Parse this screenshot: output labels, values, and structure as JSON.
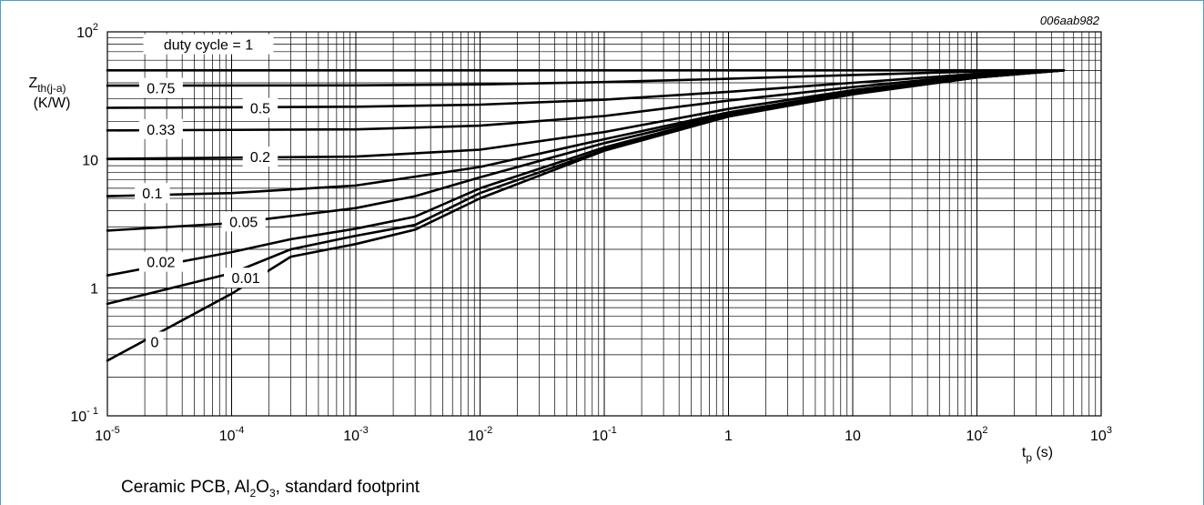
{
  "figure_id": "006aab982",
  "caption": {
    "prefix": "Ceramic PCB, Al",
    "sub1": "2",
    "mid": "O",
    "sub2": "3",
    "suffix": ", standard footprint"
  },
  "chart_data": {
    "type": "line",
    "x_scale": "log",
    "y_scale": "log",
    "xlim": [
      1e-05,
      1000
    ],
    "ylim": [
      0.1,
      100
    ],
    "grid": true,
    "x_ticks": [
      {
        "value": 1e-05,
        "base": "10",
        "exp": "-5"
      },
      {
        "value": 0.0001,
        "base": "10",
        "exp": "-4"
      },
      {
        "value": 0.001,
        "base": "10",
        "exp": "-3"
      },
      {
        "value": 0.01,
        "base": "10",
        "exp": "-2"
      },
      {
        "value": 0.1,
        "base": "10",
        "exp": "-1"
      },
      {
        "value": 1,
        "base": "1",
        "exp": ""
      },
      {
        "value": 10,
        "base": "10",
        "exp": ""
      },
      {
        "value": 100,
        "base": "10",
        "exp": "2"
      },
      {
        "value": 1000,
        "base": "10",
        "exp": "3"
      }
    ],
    "y_ticks": [
      {
        "value": 0.1,
        "base": "10",
        "exp": "- 1"
      },
      {
        "value": 1,
        "base": "1",
        "exp": ""
      },
      {
        "value": 10,
        "base": "10",
        "exp": ""
      },
      {
        "value": 100,
        "base": "10",
        "exp": "2"
      }
    ],
    "xlabel": {
      "main": "t",
      "sub": "p",
      "unit": " (s)"
    },
    "ylabel": {
      "main": "Z",
      "sub": "th(j-a)",
      "unit": "(K/W)"
    },
    "series": [
      {
        "name": "duty cycle = 1",
        "x": [
          1e-05,
          500
        ],
        "y": [
          50,
          50
        ]
      },
      {
        "name": "0.75",
        "x": [
          1e-05,
          0.001,
          0.01,
          0.1,
          1,
          10,
          100,
          500
        ],
        "y": [
          38,
          38.2,
          38.8,
          40.5,
          43,
          46,
          49,
          50
        ]
      },
      {
        "name": "0.5",
        "x": [
          1e-05,
          0.001,
          0.01,
          0.1,
          1,
          10,
          100,
          500
        ],
        "y": [
          25.5,
          26,
          27,
          29.5,
          34,
          40,
          47,
          50
        ]
      },
      {
        "name": "0.33",
        "x": [
          1e-05,
          0.001,
          0.01,
          0.1,
          1,
          10,
          100,
          500
        ],
        "y": [
          17,
          17.3,
          18.5,
          22,
          29,
          37,
          46,
          50
        ]
      },
      {
        "name": "0.2",
        "x": [
          1e-05,
          0.001,
          0.01,
          0.1,
          1,
          10,
          100,
          500
        ],
        "y": [
          10.2,
          10.6,
          12,
          16.5,
          25,
          35,
          45,
          50
        ]
      },
      {
        "name": "0.1",
        "x": [
          1e-05,
          0.0001,
          0.001,
          0.01,
          0.1,
          1,
          10,
          100,
          500
        ],
        "y": [
          5.2,
          5.5,
          6.3,
          8.8,
          14.5,
          23.5,
          34,
          45,
          50
        ]
      },
      {
        "name": "0.05",
        "x": [
          1e-05,
          0.0001,
          0.001,
          0.003,
          0.01,
          0.1,
          1,
          10,
          100,
          500
        ],
        "y": [
          2.8,
          3.2,
          4.2,
          5.2,
          7.3,
          13.5,
          23,
          33.5,
          44.5,
          50
        ]
      },
      {
        "name": "0.02",
        "x": [
          1e-05,
          0.0001,
          0.0003,
          0.001,
          0.003,
          0.01,
          0.1,
          1,
          10,
          100,
          500
        ],
        "y": [
          1.25,
          1.9,
          2.4,
          2.9,
          3.6,
          6,
          12.5,
          22.5,
          33,
          44,
          50
        ]
      },
      {
        "name": "0.01",
        "x": [
          1e-05,
          0.0001,
          0.0003,
          0.001,
          0.003,
          0.01,
          0.1,
          1,
          10,
          100,
          500
        ],
        "y": [
          0.75,
          1.3,
          2,
          2.55,
          3.1,
          5.5,
          12,
          22,
          33,
          44,
          50
        ]
      },
      {
        "name": "0",
        "x": [
          1e-05,
          0.0001,
          0.0003,
          0.001,
          0.003,
          0.01,
          0.1,
          1,
          10,
          100,
          500
        ],
        "y": [
          0.27,
          0.9,
          1.75,
          2.2,
          2.85,
          5,
          11.8,
          21.8,
          32.5,
          44,
          50
        ]
      }
    ],
    "series_labels": [
      {
        "series": "duty cycle = 1",
        "text": "duty cycle = 1",
        "x": 6.5e-05,
        "y": 80,
        "anchor": "middle"
      },
      {
        "series": "0.75",
        "text": "0.75",
        "x": 2.7e-05,
        "y": 36.5,
        "anchor": "middle"
      },
      {
        "series": "0.5",
        "text": "0.5",
        "x": 0.00017,
        "y": 25.5,
        "anchor": "middle"
      },
      {
        "series": "0.33",
        "text": "0.33",
        "x": 2.7e-05,
        "y": 17.4,
        "anchor": "middle"
      },
      {
        "series": "0.2",
        "text": "0.2",
        "x": 0.00017,
        "y": 10.6,
        "anchor": "middle"
      },
      {
        "series": "0.1",
        "text": "0.1",
        "x": 2.3e-05,
        "y": 5.5,
        "anchor": "middle"
      },
      {
        "series": "0.05",
        "text": "0.05",
        "x": 0.000125,
        "y": 3.3,
        "anchor": "middle"
      },
      {
        "series": "0.02",
        "text": "0.02",
        "x": 2.7e-05,
        "y": 1.6,
        "anchor": "middle"
      },
      {
        "series": "0.01",
        "text": "0.01",
        "x": 0.00013,
        "y": 1.2,
        "anchor": "middle"
      },
      {
        "series": "0",
        "text": "0",
        "x": 2.4e-05,
        "y": 0.38,
        "anchor": "middle"
      }
    ]
  }
}
